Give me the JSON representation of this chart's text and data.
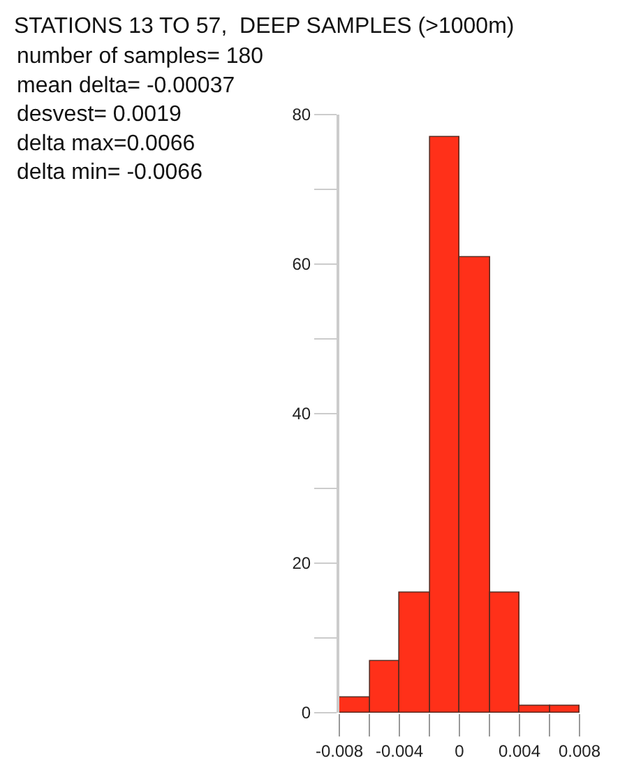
{
  "chart_data": {
    "type": "histogram",
    "title": "STATIONS 13 TO 57,  DEEP SAMPLES (>1000m)",
    "annotations": [
      "number of samples= 180",
      "mean delta= -0.00037",
      "desvest= 0.0019",
      "delta max=0.0066",
      "delta min= -0.0066"
    ],
    "bins": [
      -0.008,
      -0.006,
      -0.004,
      -0.002,
      0,
      0.002,
      0.004,
      0.006,
      0.008
    ],
    "values": [
      2,
      7,
      16,
      77,
      61,
      16,
      1,
      1
    ],
    "color": "#ff3019",
    "xlim": [
      -0.008,
      0.008
    ],
    "xticks": [
      -0.008,
      {
        "value": -0.006,
        "label": null
      },
      -0.004,
      {
        "value": -0.002,
        "label": null
      },
      0,
      {
        "value": 0.002,
        "label": null
      },
      0.004,
      {
        "value": 0.006,
        "label": null
      },
      0.008
    ],
    "ylim": [
      0,
      80
    ],
    "yticks": [
      0,
      {
        "value": 10,
        "label": null
      },
      20,
      {
        "value": 30,
        "label": null
      },
      40,
      {
        "value": 50,
        "label": null
      },
      60,
      {
        "value": 70,
        "label": null
      },
      80
    ]
  }
}
